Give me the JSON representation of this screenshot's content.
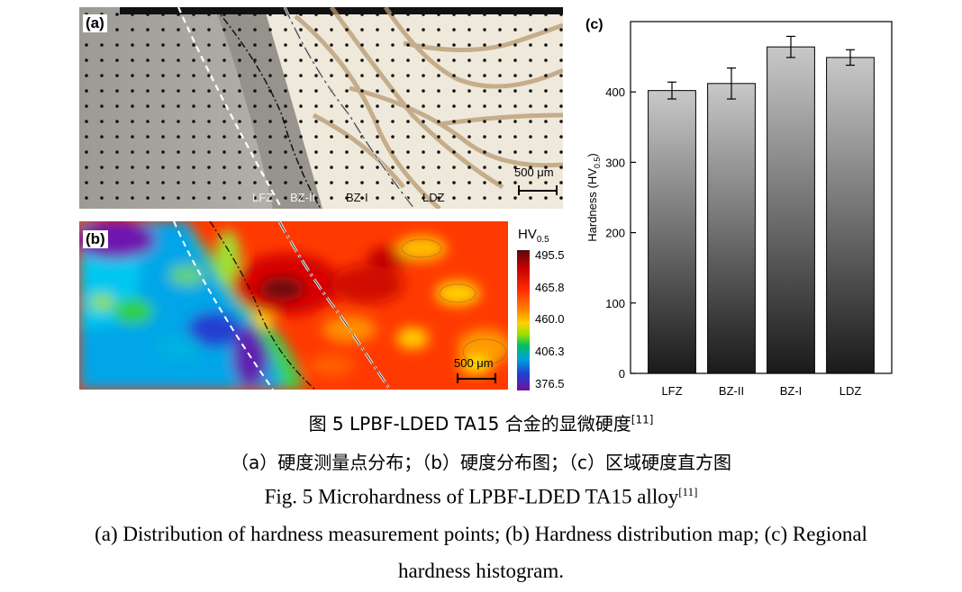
{
  "panel_a": {
    "label": "(a)",
    "zones": [
      "LFZ",
      "BZ-II",
      "BZ-I",
      "LDZ"
    ],
    "scale_bar": "500 μm"
  },
  "panel_b": {
    "label": "(b)",
    "scale_bar": "500 μm",
    "colorbar": {
      "title_main": "HV",
      "title_sub": "0.5",
      "ticks": [
        "495.5",
        "465.8",
        "460.0",
        "406.3",
        "376.5"
      ]
    }
  },
  "panel_c": {
    "label": "(c)"
  },
  "chart_data": {
    "type": "bar",
    "categories": [
      "LFZ",
      "BZ-II",
      "BZ-I",
      "LDZ"
    ],
    "values": [
      402,
      412,
      464,
      449
    ],
    "errors": [
      12,
      22,
      15,
      11
    ],
    "ylabel": "Hardness (HV",
    "ylabel_sub": "0.5",
    "ylabel_tail": ")",
    "ylim": [
      0,
      500
    ],
    "yticks": [
      0,
      100,
      200,
      300,
      400
    ],
    "grid": false,
    "bar_gradient": [
      "#c8c8c8",
      "#1a1a1a"
    ]
  },
  "captions": {
    "zh_title": "图 5 LPBF-LDED TA15 合金的显微硬度",
    "zh_ref": "[11]",
    "zh_sub": "（a）硬度测量点分布；（b）硬度分布图；（c）区域硬度直方图",
    "en_title": "Fig. 5 Microhardness of LPBF-LDED TA15 alloy",
    "en_ref": "[11]",
    "en_sub_line1": "(a) Distribution of hardness measurement points; (b) Hardness distribution map; (c) Regional",
    "en_sub_line2": "hardness histogram."
  }
}
